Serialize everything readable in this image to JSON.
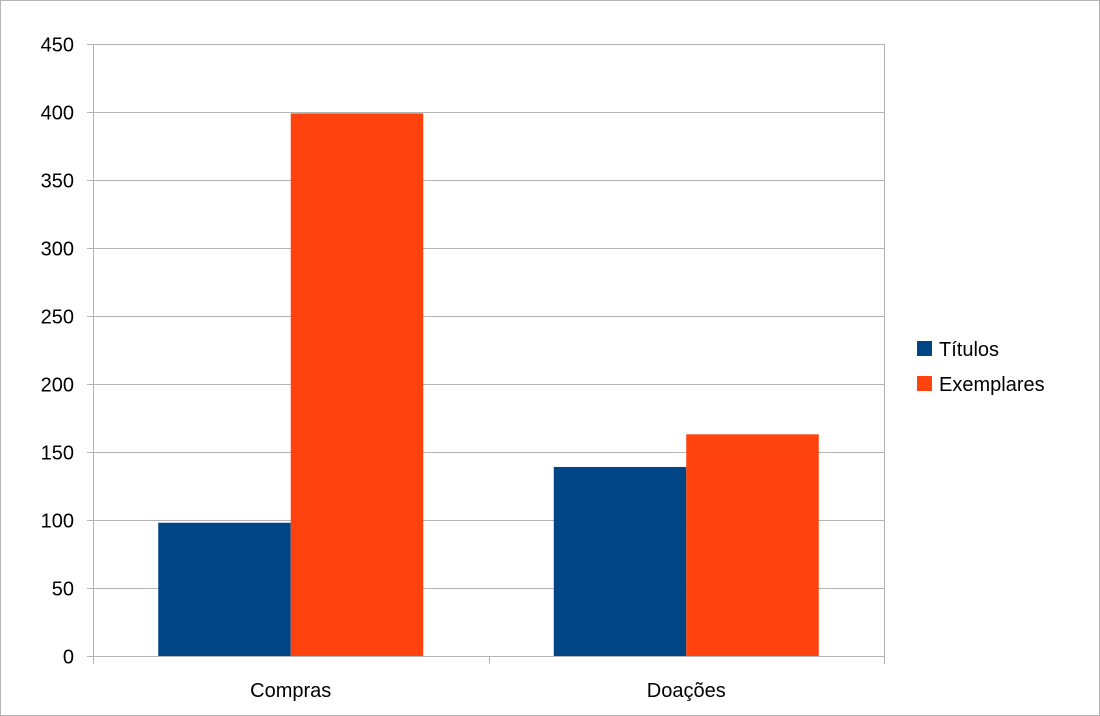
{
  "chart_data": {
    "type": "bar",
    "categories": [
      "Compras",
      "Doações"
    ],
    "series": [
      {
        "name": "Títulos",
        "values": [
          98,
          139
        ],
        "color": "#004586"
      },
      {
        "name": "Exemplares",
        "values": [
          399,
          163
        ],
        "color": "#ff420e"
      }
    ],
    "title": "",
    "xlabel": "",
    "ylabel": "",
    "ylim": [
      0,
      450
    ],
    "yticks": [
      0,
      50,
      100,
      150,
      200,
      250,
      300,
      350,
      400,
      450
    ],
    "grid": true,
    "legend_position": "right"
  }
}
